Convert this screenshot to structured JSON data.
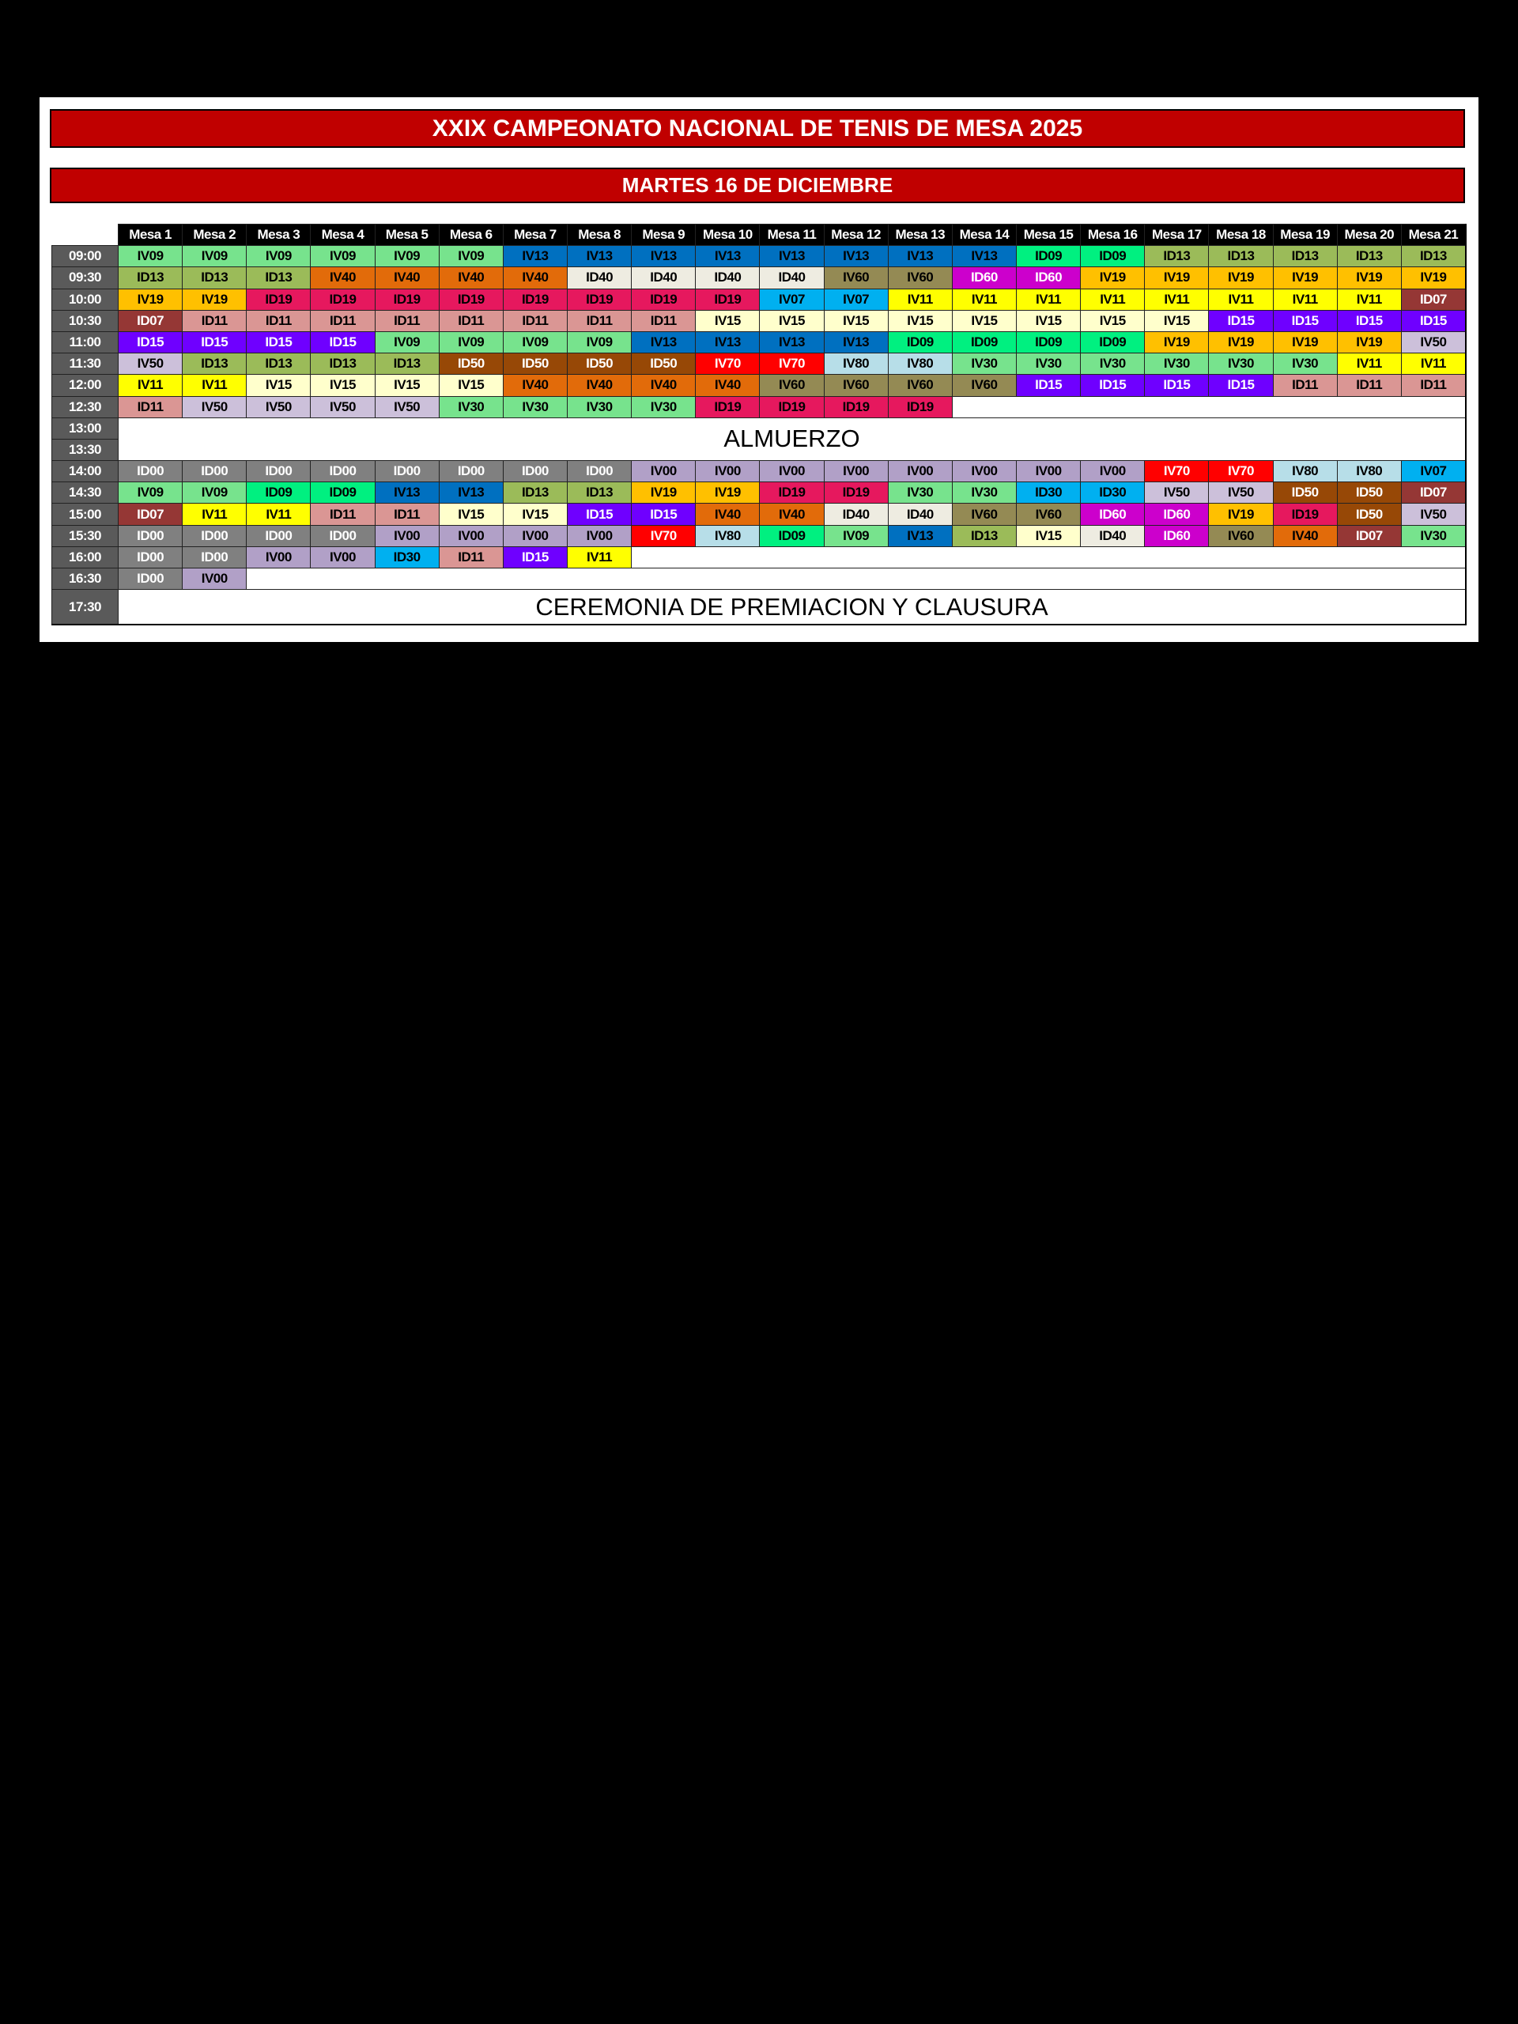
{
  "title": "XXIX CAMPEONATO NACIONAL DE TENIS DE MESA 2025",
  "subtitle": "MARTES 16 DE DICIEMBRE",
  "tables": [
    "Mesa 1",
    "Mesa 2",
    "Mesa 3",
    "Mesa 4",
    "Mesa 5",
    "Mesa 6",
    "Mesa 7",
    "Mesa 8",
    "Mesa 9",
    "Mesa 10",
    "Mesa 11",
    "Mesa 12",
    "Mesa 13",
    "Mesa 14",
    "Mesa 15",
    "Mesa 16",
    "Mesa 17",
    "Mesa 18",
    "Mesa 19",
    "Mesa 20",
    "Mesa 21"
  ],
  "schedule": [
    {
      "time": "09:00",
      "cells": [
        "IV09",
        "IV09",
        "IV09",
        "IV09",
        "IV09",
        "IV09",
        "IV13",
        "IV13",
        "IV13",
        "IV13",
        "IV13",
        "IV13",
        "IV13",
        "IV13",
        "ID09",
        "ID09",
        "ID13",
        "ID13",
        "ID13",
        "ID13",
        "ID13"
      ]
    },
    {
      "time": "09:30",
      "cells": [
        "ID13",
        "ID13",
        "ID13",
        "IV40",
        "IV40",
        "IV40",
        "IV40",
        "ID40",
        "ID40",
        "ID40",
        "ID40",
        "IV60",
        "IV60",
        "ID60",
        "ID60",
        "IV19",
        "IV19",
        "IV19",
        "IV19",
        "IV19",
        "IV19"
      ]
    },
    {
      "time": "10:00",
      "cells": [
        "IV19",
        "IV19",
        "ID19",
        "ID19",
        "ID19",
        "ID19",
        "ID19",
        "ID19",
        "ID19",
        "ID19",
        "IV07",
        "IV07",
        "IV11",
        "IV11",
        "IV11",
        "IV11",
        "IV11",
        "IV11",
        "IV11",
        "IV11",
        "ID07"
      ]
    },
    {
      "time": "10:30",
      "cells": [
        "ID07",
        "ID11",
        "ID11",
        "ID11",
        "ID11",
        "ID11",
        "ID11",
        "ID11",
        "ID11",
        "IV15",
        "IV15",
        "IV15",
        "IV15",
        "IV15",
        "IV15",
        "IV15",
        "IV15",
        "ID15",
        "ID15",
        "ID15",
        "ID15"
      ]
    },
    {
      "time": "11:00",
      "cells": [
        "ID15",
        "ID15",
        "ID15",
        "ID15",
        "IV09",
        "IV09",
        "IV09",
        "IV09",
        "IV13",
        "IV13",
        "IV13",
        "IV13",
        "ID09",
        "ID09",
        "ID09",
        "ID09",
        "IV19",
        "IV19",
        "IV19",
        "IV19",
        "IV50"
      ]
    },
    {
      "time": "11:30",
      "cells": [
        "IV50",
        "ID13",
        "ID13",
        "ID13",
        "ID13",
        "ID50",
        "ID50",
        "ID50",
        "ID50",
        "IV70",
        "IV70",
        "IV80",
        "IV80",
        "IV30",
        "IV30",
        "IV30",
        "IV30",
        "IV30",
        "IV30",
        "IV11",
        "IV11"
      ]
    },
    {
      "time": "12:00",
      "cells": [
        "IV11",
        "IV11",
        "IV15",
        "IV15",
        "IV15",
        "IV15",
        "IV40",
        "IV40",
        "IV40",
        "IV40",
        "IV60",
        "IV60",
        "IV60",
        "IV60",
        "ID15",
        "ID15",
        "ID15",
        "ID15",
        "ID11",
        "ID11",
        "ID11"
      ]
    },
    {
      "time": "12:30",
      "cells": [
        "ID11",
        "IV50",
        "IV50",
        "IV50",
        "IV50",
        "IV30",
        "IV30",
        "IV30",
        "IV30",
        "ID19",
        "ID19",
        "ID19",
        "ID19"
      ]
    },
    {
      "time": "13:00",
      "merged": "ALMUERZO"
    },
    {
      "time": "13:30"
    },
    {
      "time": "14:00",
      "cells": [
        "ID00",
        "ID00",
        "ID00",
        "ID00",
        "ID00",
        "ID00",
        "ID00",
        "ID00",
        "IV00",
        "IV00",
        "IV00",
        "IV00",
        "IV00",
        "IV00",
        "IV00",
        "IV00",
        "IV70",
        "IV70",
        "IV80",
        "IV80",
        "IV07"
      ]
    },
    {
      "time": "14:30",
      "cells": [
        "IV09",
        "IV09",
        "ID09",
        "ID09",
        "IV13",
        "IV13",
        "ID13",
        "ID13",
        "IV19",
        "IV19",
        "ID19",
        "ID19",
        "IV30",
        "IV30",
        "ID30",
        "ID30",
        "IV50",
        "IV50",
        "ID50",
        "ID50",
        "ID07"
      ]
    },
    {
      "time": "15:00",
      "cells": [
        "ID07",
        "IV11",
        "IV11",
        "ID11",
        "ID11",
        "IV15",
        "IV15",
        "ID15",
        "ID15",
        "IV40",
        "IV40",
        "ID40",
        "ID40",
        "IV60",
        "IV60",
        "ID60",
        "ID60",
        "IV19",
        "ID19",
        "ID50",
        "IV50"
      ]
    },
    {
      "time": "15:30",
      "cells": [
        "ID00",
        "ID00",
        "ID00",
        "ID00",
        "IV00",
        "IV00",
        "IV00",
        "IV00",
        "IV70",
        "IV80",
        "ID09",
        "IV09",
        "IV13",
        "ID13",
        "IV15",
        "ID40",
        "ID60",
        "IV60",
        "IV40",
        "ID07",
        "IV30"
      ]
    },
    {
      "time": "16:00",
      "cells": [
        "ID00",
        "ID00",
        "IV00",
        "IV00",
        "ID30",
        "ID11",
        "ID15",
        "IV11"
      ]
    },
    {
      "time": "16:30",
      "cells": [
        "ID00",
        "IV00"
      ]
    },
    {
      "time": "17:30",
      "merged": "CEREMONIA DE PREMIACION Y CLAUSURA"
    }
  ],
  "colors": {
    "IV09": "#77e38d",
    "ID09": "#00f080",
    "IV13": "#0070c0",
    "ID13": "#9bbb59",
    "IV40": "#e26b0a",
    "ID40": "#eeece1",
    "IV19": "#ffc000",
    "ID19": "#e6185e",
    "IV07": "#00b0f0",
    "IV11": "#ffff00",
    "ID07": "#953735",
    "ID11": "#da9694",
    "IV15": "#ffffcc",
    "ID15": "#6f00ff",
    "IV50": "#ccc0da",
    "ID50": "#974806",
    "IV70": "#ff0000",
    "IV80": "#b7dee8",
    "IV60": "#948a54",
    "ID60": "#cc00cc",
    "IV30": "#77e38d",
    "ID30": "#00b0f0",
    "ID00": "#808080",
    "IV00": "#b1a0c7"
  },
  "light_text_codes": [
    "ID07",
    "ID15",
    "ID50",
    "IV70",
    "ID60",
    "ID00"
  ],
  "accent": "#c00000"
}
